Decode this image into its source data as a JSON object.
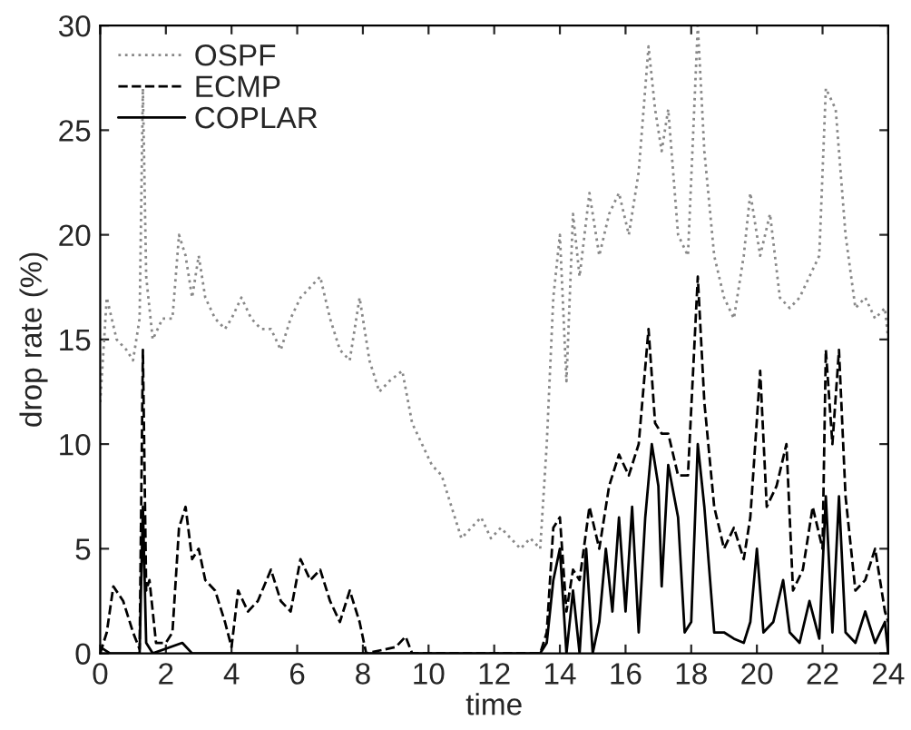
{
  "chart_data": {
    "type": "line",
    "xlabel": "time",
    "ylabel": "drop rate (%)",
    "xlim": [
      0,
      24
    ],
    "ylim": [
      0,
      30
    ],
    "xticks": [
      0,
      2,
      4,
      6,
      8,
      10,
      12,
      14,
      16,
      18,
      20,
      22,
      24
    ],
    "yticks": [
      0,
      5,
      10,
      15,
      20,
      25,
      30
    ],
    "grid": false,
    "legend": "top left",
    "series": [
      {
        "name": "OSPF",
        "color": "#888888",
        "line_style": "dotted",
        "x": [
          0,
          0.2,
          0.5,
          0.8,
          1.0,
          1.2,
          1.3,
          1.4,
          1.6,
          1.9,
          2.2,
          2.4,
          2.6,
          2.8,
          3.0,
          3.2,
          3.5,
          3.8,
          4.0,
          4.3,
          4.6,
          4.9,
          5.2,
          5.5,
          5.8,
          6.1,
          6.4,
          6.7,
          7.0,
          7.3,
          7.6,
          7.9,
          8.2,
          8.5,
          8.8,
          9.2,
          9.5,
          9.8,
          10.1,
          10.4,
          10.7,
          11.0,
          11.3,
          11.6,
          11.9,
          12.2,
          12.5,
          12.8,
          13.1,
          13.4,
          13.6,
          13.8,
          14.0,
          14.2,
          14.4,
          14.6,
          14.9,
          15.2,
          15.5,
          15.8,
          16.1,
          16.4,
          16.7,
          16.9,
          17.1,
          17.3,
          17.6,
          17.9,
          18.2,
          18.4,
          18.7,
          19.0,
          19.3,
          19.6,
          19.8,
          20.1,
          20.4,
          20.7,
          21.0,
          21.3,
          21.6,
          21.9,
          22.1,
          22.4,
          22.7,
          23.0,
          23.3,
          23.6,
          23.9,
          24
        ],
        "values": [
          12,
          17,
          15,
          14.5,
          14,
          16,
          27,
          18,
          15,
          16,
          16,
          20,
          19,
          17,
          19,
          17,
          16,
          15.5,
          16,
          17,
          16,
          15.5,
          15.5,
          14.5,
          16,
          17,
          17.5,
          18,
          16,
          14.5,
          14,
          17,
          14,
          12.5,
          13,
          13.5,
          11,
          10,
          9,
          8.5,
          7,
          5.5,
          6,
          6.5,
          5.5,
          6,
          5.5,
          5,
          5.5,
          5,
          10,
          17,
          20,
          13,
          21,
          18,
          22,
          19,
          21,
          22,
          20,
          23,
          29,
          26,
          24,
          26,
          20,
          19,
          30,
          24,
          19,
          17,
          16,
          19,
          22,
          19,
          21,
          17,
          16.5,
          17,
          18,
          19,
          27,
          26,
          20,
          16.5,
          17,
          16,
          16.5,
          15
        ]
      },
      {
        "name": "ECMP",
        "color": "#000000",
        "line_style": "dashed",
        "x": [
          0,
          0.2,
          0.4,
          0.7,
          1.0,
          1.2,
          1.3,
          1.4,
          1.5,
          1.7,
          2.0,
          2.2,
          2.4,
          2.6,
          2.8,
          3.0,
          3.2,
          3.5,
          3.8,
          4.0,
          4.2,
          4.5,
          4.8,
          5.2,
          5.5,
          5.8,
          6.1,
          6.4,
          6.7,
          7.0,
          7.3,
          7.6,
          7.9,
          8.1,
          9.0,
          9.3,
          9.5,
          13.4,
          13.6,
          13.8,
          14.0,
          14.2,
          14.4,
          14.6,
          14.9,
          15.2,
          15.5,
          15.8,
          16.1,
          16.4,
          16.7,
          16.9,
          17.1,
          17.3,
          17.6,
          17.9,
          18.2,
          18.4,
          18.7,
          19.0,
          19.3,
          19.6,
          19.8,
          20.1,
          20.3,
          20.6,
          20.9,
          21.1,
          21.4,
          21.7,
          22.0,
          22.1,
          22.3,
          22.5,
          22.7,
          23.0,
          23.3,
          23.6,
          23.9,
          24
        ],
        "values": [
          0,
          1,
          3.2,
          2.5,
          1,
          0.2,
          14.5,
          3,
          3.5,
          0.5,
          0.5,
          1,
          6,
          7,
          4.5,
          5,
          3.5,
          3,
          1.5,
          0.3,
          3,
          2,
          2.5,
          4,
          2.5,
          2,
          4.5,
          3.5,
          4,
          2.5,
          1.5,
          3,
          1.5,
          0,
          0.3,
          0.8,
          0,
          0,
          1,
          6,
          6.5,
          2,
          4,
          3.5,
          7,
          5,
          8,
          9.5,
          8.5,
          10,
          15.5,
          11,
          10.5,
          10.5,
          8.5,
          8.5,
          18,
          12,
          7,
          5,
          6,
          4.5,
          6.5,
          13.5,
          7,
          8,
          10,
          3,
          4,
          7,
          5,
          14.5,
          10,
          14.5,
          7.5,
          3,
          3.5,
          5,
          2,
          1.5
        ]
      },
      {
        "name": "COPLAR",
        "color": "#000000",
        "line_style": "solid",
        "x": [
          0,
          0.3,
          1.2,
          1.3,
          1.4,
          1.6,
          2.5,
          2.8,
          13.4,
          13.6,
          13.8,
          14.0,
          14.2,
          14.4,
          14.6,
          14.8,
          15.0,
          15.2,
          15.4,
          15.6,
          15.8,
          16.0,
          16.2,
          16.4,
          16.6,
          16.8,
          17.0,
          17.1,
          17.3,
          17.6,
          17.8,
          18.0,
          18.2,
          18.4,
          18.7,
          19.0,
          19.3,
          19.6,
          19.8,
          20.0,
          20.2,
          20.5,
          20.8,
          21.0,
          21.3,
          21.6,
          21.9,
          22.1,
          22.3,
          22.5,
          22.7,
          23.0,
          23.3,
          23.6,
          23.9,
          24
        ],
        "values": [
          0.3,
          0,
          0,
          7,
          0.5,
          0,
          0.5,
          0,
          0,
          0.5,
          3.5,
          5,
          0,
          3,
          0,
          5,
          0,
          1.5,
          5,
          2,
          6.5,
          2,
          7,
          1,
          6.5,
          10,
          8,
          3.2,
          9,
          6.5,
          1,
          1.5,
          10,
          7,
          1,
          1,
          0.7,
          0.5,
          1.5,
          5,
          1,
          1.5,
          3.5,
          1,
          0.5,
          2.5,
          0.7,
          7.5,
          1,
          7.5,
          1,
          0.5,
          2,
          0.5,
          1.5,
          0
        ]
      }
    ]
  }
}
